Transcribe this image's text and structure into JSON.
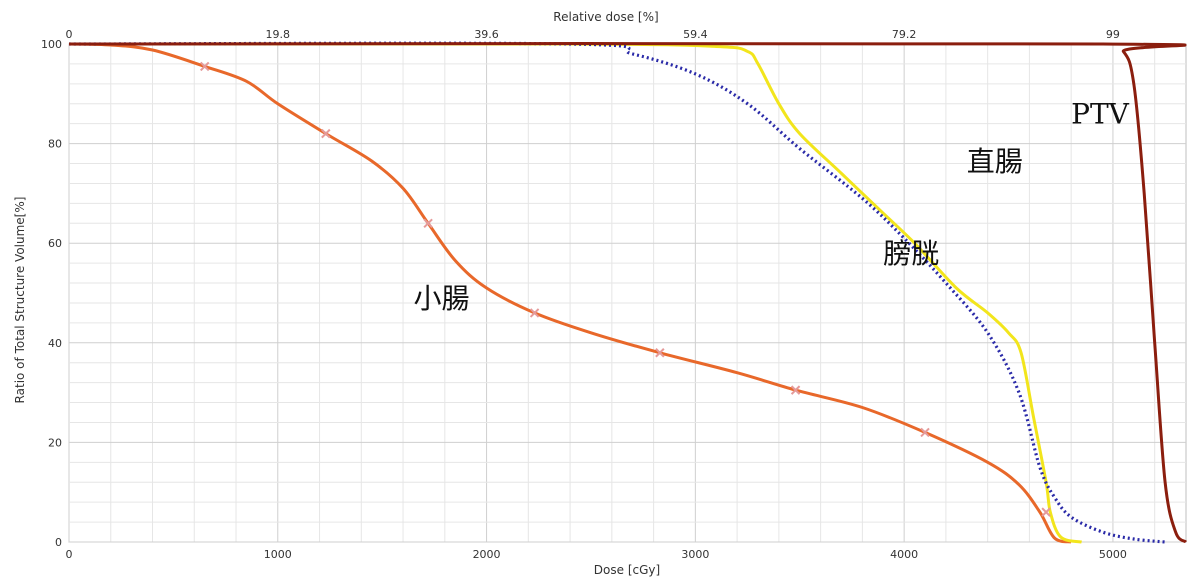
{
  "chart_data": {
    "type": "line",
    "xlabel": "Dose [cGy]",
    "x2label": "Relative dose [%]",
    "ylabel": "Ratio of Total Structure Volume[%]",
    "xlim": [
      0,
      5350
    ],
    "ylim": [
      0,
      100
    ],
    "x_ticks": [
      "0",
      "1000",
      "2000",
      "3000",
      "4000",
      "5000"
    ],
    "x2_ticks": [
      "0",
      "19.8",
      "39.6",
      "59.4",
      "79.2",
      "99"
    ],
    "y_ticks": [
      "0",
      "20",
      "40",
      "60",
      "80",
      "100"
    ],
    "grid": true,
    "series": [
      {
        "name": "小腸",
        "color": "#e8682a",
        "style": "solid",
        "points": [
          [
            0,
            100
          ],
          [
            200,
            99.8
          ],
          [
            400,
            98.8
          ],
          [
            650,
            95.5
          ],
          [
            850,
            92.5
          ],
          [
            1000,
            88
          ],
          [
            1230,
            82
          ],
          [
            1450,
            76.5
          ],
          [
            1600,
            71
          ],
          [
            1720,
            64
          ],
          [
            1850,
            56.5
          ],
          [
            2000,
            51
          ],
          [
            2230,
            46
          ],
          [
            2500,
            42
          ],
          [
            2830,
            38
          ],
          [
            3200,
            34
          ],
          [
            3480,
            30.5
          ],
          [
            3800,
            27
          ],
          [
            4100,
            22
          ],
          [
            4400,
            16
          ],
          [
            4550,
            11.5
          ],
          [
            4650,
            6
          ],
          [
            4720,
            0.8
          ],
          [
            4800,
            0
          ]
        ]
      },
      {
        "name": "直腸",
        "color": "#f2e51c",
        "style": "solid",
        "points": [
          [
            0,
            100
          ],
          [
            2400,
            100
          ],
          [
            3100,
            99.5
          ],
          [
            3250,
            98.5
          ],
          [
            3300,
            96
          ],
          [
            3400,
            88
          ],
          [
            3500,
            82
          ],
          [
            3700,
            74
          ],
          [
            3900,
            66
          ],
          [
            4050,
            60
          ],
          [
            4250,
            51
          ],
          [
            4400,
            46
          ],
          [
            4500,
            42
          ],
          [
            4560,
            38
          ],
          [
            4620,
            25
          ],
          [
            4680,
            12
          ],
          [
            4700,
            6
          ],
          [
            4750,
            1
          ],
          [
            4850,
            0
          ]
        ]
      },
      {
        "name": "膀胱",
        "color": "#2a2aa8",
        "style": "dotted",
        "points": [
          [
            0,
            100
          ],
          [
            2400,
            100
          ],
          [
            2700,
            98
          ],
          [
            3000,
            94
          ],
          [
            3250,
            88
          ],
          [
            3500,
            79
          ],
          [
            3800,
            69
          ],
          [
            4000,
            61
          ],
          [
            4200,
            52
          ],
          [
            4400,
            42
          ],
          [
            4550,
            30
          ],
          [
            4650,
            15
          ],
          [
            4720,
            9
          ],
          [
            4800,
            5
          ],
          [
            4950,
            2
          ],
          [
            5100,
            0.6
          ],
          [
            5250,
            0
          ]
        ]
      },
      {
        "name": "PTV",
        "color": "#8b1e0e",
        "style": "solid",
        "points": [
          [
            0,
            100
          ],
          [
            4950,
            100
          ],
          [
            5050,
            98.5
          ],
          [
            5100,
            92
          ],
          [
            5150,
            70
          ],
          [
            5200,
            40
          ],
          [
            5250,
            12
          ],
          [
            5300,
            2
          ],
          [
            5350,
            0
          ]
        ]
      }
    ],
    "markers": {
      "series": "小腸",
      "color": "#e59a9a",
      "points": [
        [
          650,
          95.5
        ],
        [
          1230,
          82
        ],
        [
          1720,
          64
        ],
        [
          2230,
          46
        ],
        [
          2830,
          38
        ],
        [
          3480,
          30.5
        ],
        [
          4100,
          22
        ],
        [
          4680,
          6
        ]
      ]
    },
    "curve_labels": [
      {
        "text": "小腸",
        "x": 1650,
        "y": 47
      },
      {
        "text": "直腸",
        "x": 4300,
        "y": 74.5
      },
      {
        "text": "膀胱",
        "x": 3900,
        "y": 56
      },
      {
        "text": "PTV",
        "x": 4800,
        "y": 84
      }
    ]
  }
}
